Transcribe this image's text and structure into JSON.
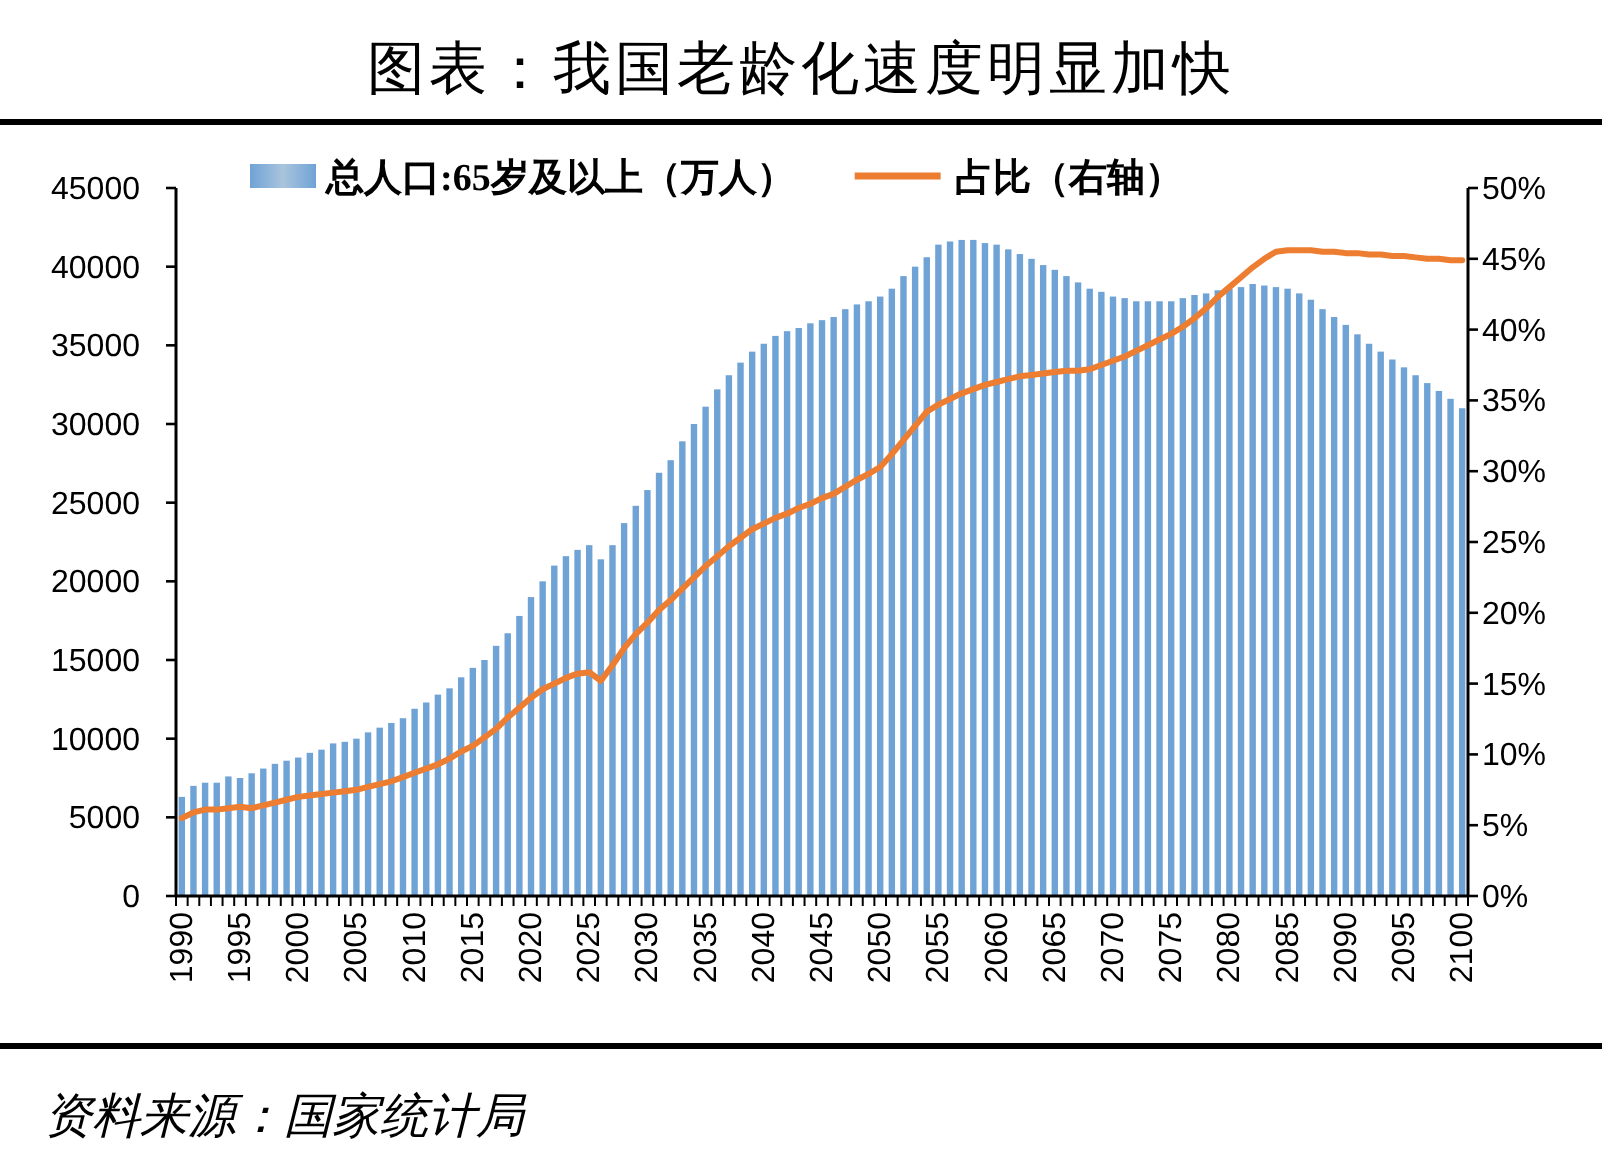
{
  "chart_data": {
    "type": "bar",
    "title": "图表：我国老龄化速度明显加快",
    "annotations": [
      "资料来源：国家统计局"
    ],
    "categories": [
      "1990",
      null,
      null,
      null,
      null,
      "1995",
      null,
      null,
      null,
      null,
      "2000",
      null,
      null,
      null,
      null,
      "2005",
      null,
      null,
      null,
      null,
      "2010",
      null,
      null,
      null,
      null,
      "2015",
      null,
      null,
      null,
      null,
      "2020",
      null,
      null,
      null,
      null,
      "2025",
      null,
      null,
      null,
      null,
      "2030",
      null,
      null,
      null,
      null,
      "2035",
      null,
      null,
      null,
      null,
      "2040",
      null,
      null,
      null,
      null,
      "2045",
      null,
      null,
      null,
      null,
      "2050",
      null,
      null,
      null,
      null,
      "2055",
      null,
      null,
      null,
      null,
      "2060",
      null,
      null,
      null,
      null,
      "2065",
      null,
      null,
      null,
      null,
      "2070",
      null,
      null,
      null,
      null,
      "2075",
      null,
      null,
      null,
      null,
      "2080",
      null,
      null,
      null,
      null,
      "2085",
      null,
      null,
      null,
      null,
      "2090",
      null,
      null,
      null,
      null,
      "2095",
      null,
      null,
      null,
      null,
      "2100"
    ],
    "series": [
      {
        "name": "总人口:65岁及以上（万人）",
        "color": "#6fa3d6",
        "values": [
          6300,
          7000,
          7200,
          7200,
          7600,
          7500,
          7800,
          8100,
          8400,
          8600,
          8800,
          9100,
          9300,
          9700,
          9800,
          10000,
          10400,
          10700,
          11000,
          11300,
          11900,
          12300,
          12800,
          13200,
          13900,
          14500,
          15000,
          15900,
          16700,
          17800,
          19000,
          20000,
          21000,
          21600,
          22000,
          22300,
          21400,
          22300,
          23700,
          24800,
          25800,
          26900,
          27700,
          28900,
          30000,
          31100,
          32200,
          33100,
          33900,
          34600,
          35100,
          35600,
          35900,
          36100,
          36400,
          36600,
          36800,
          37300,
          37600,
          37800,
          38100,
          38600,
          39400,
          40000,
          40600,
          41400,
          41600,
          41700,
          41700,
          41500,
          41400,
          41100,
          40800,
          40500,
          40100,
          39800,
          39400,
          39000,
          38600,
          38400,
          38100,
          38000,
          37800,
          37800,
          37800,
          37800,
          38000,
          38200,
          38300,
          38500,
          38600,
          38700,
          38900,
          38800,
          38700,
          38600,
          38300,
          37900,
          37300,
          36800,
          36300,
          35700,
          35100,
          34600,
          34100,
          33600,
          33100,
          32600,
          32100,
          31600,
          31000
        ]
      },
      {
        "name": "占比（右轴）",
        "type": "line",
        "axis": "y2",
        "color": "#ed7d31",
        "values": [
          5.5,
          5.9,
          6.1,
          6.1,
          6.2,
          6.3,
          6.2,
          6.4,
          6.6,
          6.8,
          7.0,
          7.1,
          7.2,
          7.3,
          7.4,
          7.5,
          7.7,
          7.9,
          8.1,
          8.4,
          8.7,
          9.0,
          9.3,
          9.7,
          10.2,
          10.6,
          11.2,
          11.8,
          12.6,
          13.3,
          14.0,
          14.6,
          15.0,
          15.4,
          15.7,
          15.8,
          15.2,
          16.3,
          17.5,
          18.5,
          19.3,
          20.2,
          20.9,
          21.7,
          22.5,
          23.3,
          24.0,
          24.7,
          25.3,
          25.9,
          26.3,
          26.7,
          27.0,
          27.4,
          27.7,
          28.1,
          28.4,
          28.9,
          29.4,
          29.8,
          30.3,
          31.2,
          32.2,
          33.2,
          34.2,
          34.7,
          35.1,
          35.5,
          35.8,
          36.1,
          36.3,
          36.5,
          36.7,
          36.8,
          36.9,
          37.0,
          37.1,
          37.1,
          37.2,
          37.5,
          37.8,
          38.1,
          38.5,
          38.9,
          39.3,
          39.7,
          40.2,
          40.8,
          41.5,
          42.3,
          43.0,
          43.7,
          44.4,
          45.0,
          45.5,
          45.6,
          45.6,
          45.6,
          45.5,
          45.5,
          45.4,
          45.4,
          45.3,
          45.3,
          45.2,
          45.2,
          45.1,
          45.0,
          45.0,
          44.9,
          44.9
        ]
      }
    ],
    "ylim": [
      0,
      45000
    ],
    "yticks": [
      0,
      5000,
      10000,
      15000,
      20000,
      25000,
      30000,
      35000,
      40000,
      45000
    ],
    "y2lim": [
      0,
      50
    ],
    "y2ticks": [
      {
        "value": 0,
        "label": "0%"
      },
      {
        "value": 5,
        "label": "5%"
      },
      {
        "value": 10,
        "label": "10%"
      },
      {
        "value": 15,
        "label": "15%"
      },
      {
        "value": 20,
        "label": "20%"
      },
      {
        "value": 25,
        "label": "25%"
      },
      {
        "value": 30,
        "label": "30%"
      },
      {
        "value": 35,
        "label": "35%"
      },
      {
        "value": 40,
        "label": "40%"
      },
      {
        "value": 45,
        "label": "45%"
      },
      {
        "value": 50,
        "label": "50%"
      }
    ],
    "legend": "top",
    "grid": false
  }
}
